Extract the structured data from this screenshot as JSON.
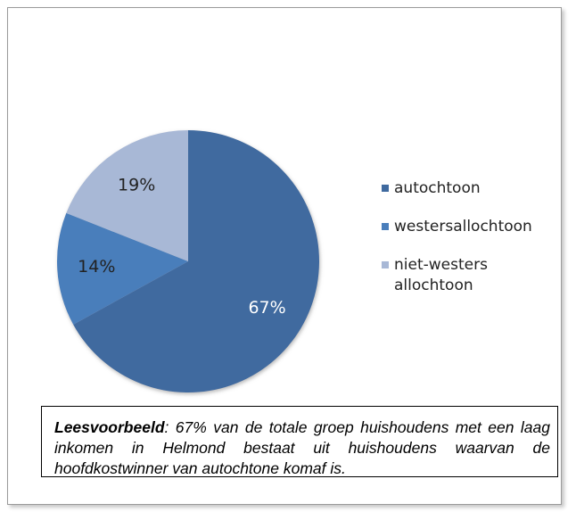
{
  "chart_data": {
    "type": "pie",
    "categories": [
      "autochtoon",
      "westersallochtoon",
      "niet-westers allochtoon"
    ],
    "values": [
      67,
      14,
      19
    ],
    "value_labels": [
      "67%",
      "14%",
      "19%"
    ],
    "colors": [
      "#3f6a9f",
      "#4a7ebb",
      "#a8b8d6"
    ],
    "label_colors": [
      "#ffffff",
      "#222222",
      "#222222"
    ],
    "legend": "right",
    "annotation": {
      "lead": "Leesvoorbeeld",
      "text": ": 67% van de totale groep huishoudens met een laag inkomen in Helmond bestaat uit huishoudens waarvan de hoofdkostwinner van autochtone komaf is."
    }
  }
}
